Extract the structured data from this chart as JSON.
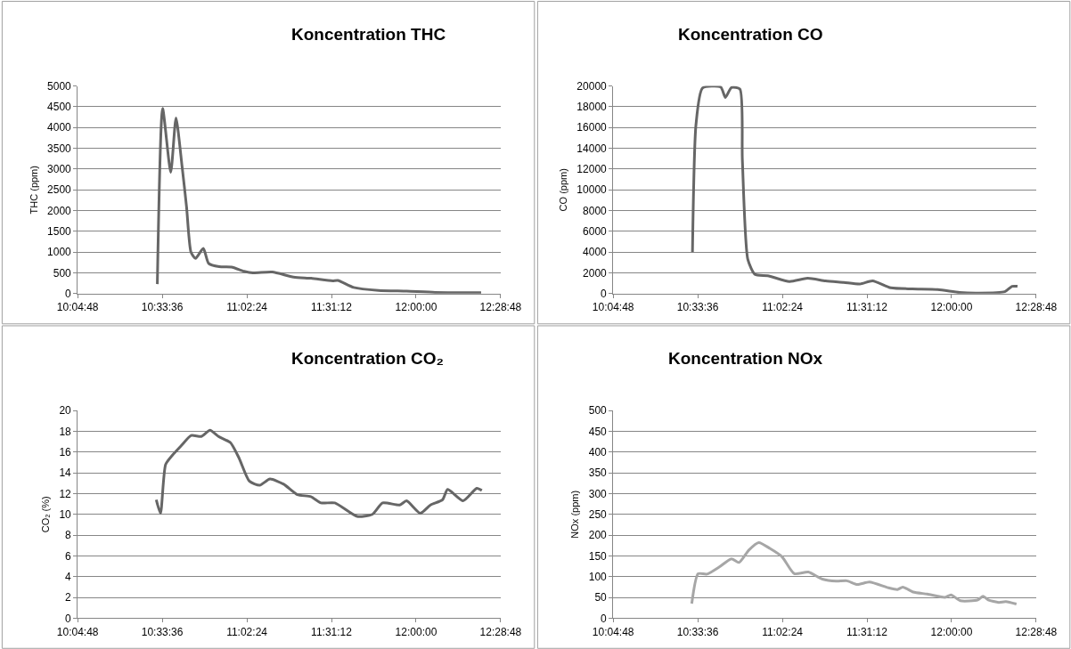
{
  "chart_data": [
    {
      "type": "line",
      "title": "Koncentration THC",
      "ylabel": "THC (ppm)",
      "grid": "y",
      "marker": "none",
      "line_style": "solid",
      "xlim": [
        10.08,
        12.48
      ],
      "xticks": [
        {
          "value": 10.08,
          "label": "10:04:48"
        },
        {
          "value": 10.56,
          "label": "10:33:36"
        },
        {
          "value": 11.04,
          "label": "11:02:24"
        },
        {
          "value": 11.52,
          "label": "11:31:12"
        },
        {
          "value": 12.0,
          "label": "12:00:00"
        },
        {
          "value": 12.48,
          "label": "12:28:48"
        }
      ],
      "ylim": [
        0,
        5000
      ],
      "yticks": [
        0,
        500,
        1000,
        1500,
        2000,
        2500,
        3000,
        3500,
        4000,
        4500,
        5000
      ],
      "x": [
        10.532,
        10.562,
        10.608,
        10.638,
        10.672,
        10.698,
        10.723,
        10.749,
        10.793,
        10.823,
        10.883,
        10.953,
        11.024,
        11.074,
        11.184,
        11.305,
        11.405,
        11.526,
        11.556,
        11.646,
        11.787,
        11.947,
        12.108,
        12.369
      ],
      "series": [
        {
          "color": "#666666",
          "values": [
            230,
            4460,
            2920,
            4230,
            3080,
            2080,
            1000,
            850,
            1090,
            730,
            650,
            640,
            540,
            500,
            520,
            400,
            370,
            310,
            320,
            150,
            80,
            60,
            30,
            25
          ]
        }
      ]
    },
    {
      "type": "line",
      "title": "Koncentration CO",
      "ylabel": "CO (ppm)",
      "grid": "y",
      "marker": "none",
      "line_style": "solid",
      "xlim": [
        10.08,
        12.48
      ],
      "xticks": [
        {
          "value": 10.08,
          "label": "10:04:48"
        },
        {
          "value": 10.56,
          "label": "10:33:36"
        },
        {
          "value": 11.04,
          "label": "11:02:24"
        },
        {
          "value": 11.52,
          "label": "11:31:12"
        },
        {
          "value": 12.0,
          "label": "12:00:00"
        },
        {
          "value": 12.48,
          "label": "12:28:48"
        }
      ],
      "ylim": [
        0,
        20000
      ],
      "yticks": [
        0,
        2000,
        4000,
        6000,
        8000,
        10000,
        12000,
        14000,
        16000,
        18000,
        20000
      ],
      "x": [
        10.53,
        10.55,
        10.587,
        10.69,
        10.717,
        10.751,
        10.799,
        10.813,
        10.844,
        10.885,
        10.957,
        11.08,
        11.183,
        11.285,
        11.388,
        11.48,
        11.552,
        11.655,
        11.778,
        11.922,
        12.045,
        12.148,
        12.302,
        12.343,
        12.374
      ],
      "series": [
        {
          "color": "#666666",
          "values": [
            4000,
            16300,
            19800,
            19900,
            18900,
            19850,
            19700,
            12900,
            3300,
            1850,
            1730,
            1170,
            1480,
            1230,
            1080,
            930,
            1230,
            560,
            460,
            400,
            120,
            60,
            190,
            710,
            710
          ]
        }
      ]
    },
    {
      "type": "line",
      "title": "Koncentration CO₂",
      "ylabel": "CO₂ (%)",
      "grid": "y",
      "marker": "none",
      "line_style": "solid",
      "xlim": [
        10.08,
        12.48
      ],
      "xticks": [
        {
          "value": 10.08,
          "label": "10:04:48"
        },
        {
          "value": 10.56,
          "label": "10:33:36"
        },
        {
          "value": 11.04,
          "label": "11:02:24"
        },
        {
          "value": 11.52,
          "label": "11:31:12"
        },
        {
          "value": 12.0,
          "label": "12:00:00"
        },
        {
          "value": 12.48,
          "label": "12:28:48"
        }
      ],
      "ylim": [
        0,
        20
      ],
      "yticks": [
        0,
        2,
        4,
        6,
        8,
        10,
        12,
        14,
        16,
        18,
        20
      ],
      "x": [
        10.526,
        10.55,
        10.579,
        10.618,
        10.667,
        10.724,
        10.782,
        10.831,
        10.879,
        10.947,
        10.996,
        11.054,
        11.113,
        11.171,
        11.249,
        11.326,
        11.403,
        11.461,
        11.539,
        11.665,
        11.752,
        11.81,
        11.907,
        11.946,
        12.024,
        12.082,
        12.15,
        12.179,
        12.267,
        12.344,
        12.373
      ],
      "series": [
        {
          "color": "#666666",
          "values": [
            11.4,
            10.1,
            14.8,
            15.7,
            16.6,
            17.6,
            17.5,
            18.1,
            17.5,
            16.9,
            15.4,
            13.2,
            12.8,
            13.4,
            12.9,
            11.9,
            11.7,
            11.1,
            11.1,
            9.8,
            10.0,
            11.1,
            10.9,
            11.3,
            10.1,
            10.9,
            11.4,
            12.4,
            11.3,
            12.5,
            12.3
          ]
        }
      ]
    },
    {
      "type": "line",
      "title": "Koncentration NOx",
      "ylabel": "NOx (ppm)",
      "grid": "y",
      "marker": "none",
      "line_style": "solid",
      "xlim": [
        10.08,
        12.48
      ],
      "xticks": [
        {
          "value": 10.08,
          "label": "10:04:48"
        },
        {
          "value": 10.56,
          "label": "10:33:36"
        },
        {
          "value": 11.04,
          "label": "11:02:24"
        },
        {
          "value": 11.52,
          "label": "11:31:12"
        },
        {
          "value": 12.0,
          "label": "12:00:00"
        },
        {
          "value": 12.48,
          "label": "12:28:48"
        }
      ],
      "ylim": [
        0,
        500
      ],
      "yticks": [
        0,
        50,
        100,
        150,
        200,
        250,
        300,
        350,
        400,
        450,
        500
      ],
      "x": [
        10.526,
        10.562,
        10.612,
        10.681,
        10.751,
        10.794,
        10.85,
        10.906,
        10.969,
        11.038,
        11.108,
        11.187,
        11.267,
        11.346,
        11.405,
        11.465,
        11.534,
        11.643,
        11.693,
        11.723,
        11.782,
        11.862,
        11.961,
        11.997,
        12.05,
        12.149,
        12.179,
        12.208,
        12.268,
        12.308,
        12.368
      ],
      "series": [
        {
          "color": "#a6a6a6",
          "values": [
            35,
            107,
            106,
            123,
            143,
            134,
            164,
            182,
            168,
            148,
            107,
            111,
            94,
            89,
            90,
            81,
            87,
            73,
            69,
            75,
            63,
            58,
            50,
            56,
            42,
            44,
            53,
            44,
            38,
            40,
            34
          ]
        }
      ]
    }
  ]
}
